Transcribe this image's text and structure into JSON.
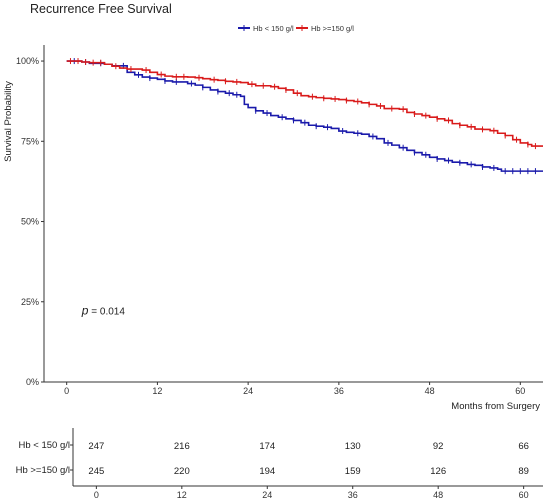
{
  "chart_data": {
    "type": "line",
    "subtype": "kaplan-meier",
    "title": "Recurrence Free Survival",
    "xlabel": "Months from Surgery",
    "ylabel": "Survival Probability",
    "xlim": [
      -3,
      63
    ],
    "ylim": [
      0,
      1.05
    ],
    "x_ticks": [
      0,
      12,
      24,
      36,
      48,
      60
    ],
    "x_tick_labels": [
      "0",
      "12",
      "24",
      "36",
      "48",
      "60"
    ],
    "y_ticks": [
      0,
      0.25,
      0.5,
      0.75,
      1.0
    ],
    "y_tick_labels": [
      "0%",
      "25%",
      "50%",
      "75%",
      "100%"
    ],
    "grid": false,
    "legend_position": "top-center",
    "annotation": {
      "p_symbol": "p",
      "p_text": "= 0.014",
      "x": 2,
      "y": 0.21
    },
    "series": [
      {
        "name": "Hb < 150 g/l",
        "color": "#1a1aab",
        "steps": [
          [
            0,
            1.0
          ],
          [
            2,
            0.997
          ],
          [
            3,
            0.993
          ],
          [
            5,
            0.99
          ],
          [
            6,
            0.985
          ],
          [
            8,
            0.965
          ],
          [
            9,
            0.957
          ],
          [
            10,
            0.95
          ],
          [
            11,
            0.947
          ],
          [
            12,
            0.943
          ],
          [
            13,
            0.938
          ],
          [
            14,
            0.935
          ],
          [
            16,
            0.93
          ],
          [
            17,
            0.925
          ],
          [
            18,
            0.918
          ],
          [
            19,
            0.91
          ],
          [
            20,
            0.905
          ],
          [
            21,
            0.9
          ],
          [
            22,
            0.895
          ],
          [
            23,
            0.89
          ],
          [
            23.5,
            0.865
          ],
          [
            24,
            0.855
          ],
          [
            25,
            0.845
          ],
          [
            26,
            0.838
          ],
          [
            27,
            0.83
          ],
          [
            28,
            0.825
          ],
          [
            29,
            0.82
          ],
          [
            30,
            0.815
          ],
          [
            31,
            0.808
          ],
          [
            32,
            0.8
          ],
          [
            33,
            0.797
          ],
          [
            34,
            0.794
          ],
          [
            35,
            0.79
          ],
          [
            36,
            0.782
          ],
          [
            37,
            0.778
          ],
          [
            38,
            0.775
          ],
          [
            39,
            0.772
          ],
          [
            40,
            0.765
          ],
          [
            41,
            0.758
          ],
          [
            42,
            0.745
          ],
          [
            43,
            0.738
          ],
          [
            44,
            0.73
          ],
          [
            45,
            0.722
          ],
          [
            46,
            0.715
          ],
          [
            47,
            0.708
          ],
          [
            48,
            0.7
          ],
          [
            49,
            0.695
          ],
          [
            50,
            0.69
          ],
          [
            51,
            0.685
          ],
          [
            52,
            0.683
          ],
          [
            53,
            0.678
          ],
          [
            54,
            0.675
          ],
          [
            55,
            0.67
          ],
          [
            56,
            0.667
          ],
          [
            57,
            0.663
          ],
          [
            57.5,
            0.657
          ],
          [
            63,
            0.657
          ]
        ],
        "censor_x": [
          1,
          2.5,
          4.5,
          7.5,
          9.5,
          11,
          13,
          14.5,
          16.5,
          18,
          20,
          21.5,
          22.5,
          25,
          26.5,
          28.5,
          30,
          31.5,
          33,
          34.5,
          36.5,
          38.5,
          40.5,
          42.5,
          44.5,
          46,
          47.5,
          49,
          50.5,
          52,
          53.5,
          55,
          56.5,
          58,
          59,
          60,
          61,
          62
        ]
      },
      {
        "name": "Hb >=150 g/l",
        "color": "#d91a1a",
        "steps": [
          [
            0,
            1.0
          ],
          [
            2,
            0.997
          ],
          [
            3,
            0.995
          ],
          [
            5,
            0.99
          ],
          [
            6,
            0.984
          ],
          [
            7,
            0.978
          ],
          [
            8,
            0.975
          ],
          [
            10,
            0.972
          ],
          [
            11,
            0.965
          ],
          [
            12,
            0.958
          ],
          [
            13,
            0.953
          ],
          [
            14,
            0.951
          ],
          [
            16,
            0.95
          ],
          [
            17,
            0.948
          ],
          [
            18,
            0.945
          ],
          [
            19,
            0.942
          ],
          [
            20,
            0.94
          ],
          [
            21,
            0.937
          ],
          [
            22,
            0.935
          ],
          [
            23,
            0.933
          ],
          [
            24,
            0.928
          ],
          [
            25,
            0.923
          ],
          [
            27,
            0.92
          ],
          [
            28,
            0.915
          ],
          [
            29,
            0.91
          ],
          [
            30,
            0.9
          ],
          [
            31,
            0.892
          ],
          [
            32,
            0.889
          ],
          [
            33,
            0.886
          ],
          [
            34,
            0.884
          ],
          [
            35,
            0.882
          ],
          [
            36,
            0.88
          ],
          [
            37,
            0.877
          ],
          [
            38,
            0.874
          ],
          [
            39,
            0.87
          ],
          [
            40,
            0.865
          ],
          [
            41,
            0.86
          ],
          [
            42,
            0.852
          ],
          [
            44,
            0.85
          ],
          [
            45,
            0.84
          ],
          [
            46,
            0.835
          ],
          [
            47,
            0.83
          ],
          [
            48,
            0.825
          ],
          [
            49,
            0.82
          ],
          [
            50,
            0.815
          ],
          [
            51,
            0.805
          ],
          [
            52,
            0.8
          ],
          [
            53,
            0.795
          ],
          [
            54,
            0.788
          ],
          [
            55,
            0.787
          ],
          [
            56,
            0.783
          ],
          [
            57,
            0.775
          ],
          [
            58,
            0.768
          ],
          [
            59,
            0.755
          ],
          [
            60,
            0.745
          ],
          [
            61,
            0.74
          ],
          [
            61.5,
            0.735
          ],
          [
            63,
            0.735
          ]
        ],
        "censor_x": [
          0.5,
          1.5,
          2.5,
          3.5,
          4.5,
          6.5,
          8.5,
          10.5,
          12.5,
          14.5,
          15.5,
          17.5,
          19.5,
          21,
          22.5,
          24.5,
          26,
          27.5,
          29,
          30.5,
          32.5,
          34,
          35.5,
          37,
          38.5,
          40,
          41.5,
          43,
          44.5,
          46,
          47.5,
          49,
          50.5,
          52,
          53.5,
          55,
          56.5,
          58,
          59.5,
          61,
          62
        ]
      }
    ],
    "risk_table": {
      "times": [
        0,
        12,
        24,
        36,
        48,
        60
      ],
      "time_labels": [
        "0",
        "12",
        "24",
        "36",
        "48",
        "60"
      ],
      "rows": [
        {
          "name": "Hb < 150 g/l",
          "color": "#1a1aab",
          "values": [
            "247",
            "216",
            "174",
            "130",
            "92",
            "66"
          ]
        },
        {
          "name": "Hb >=150 g/l",
          "color": "#a53a1a",
          "values": [
            "245",
            "220",
            "194",
            "159",
            "126",
            "89"
          ]
        }
      ]
    }
  }
}
